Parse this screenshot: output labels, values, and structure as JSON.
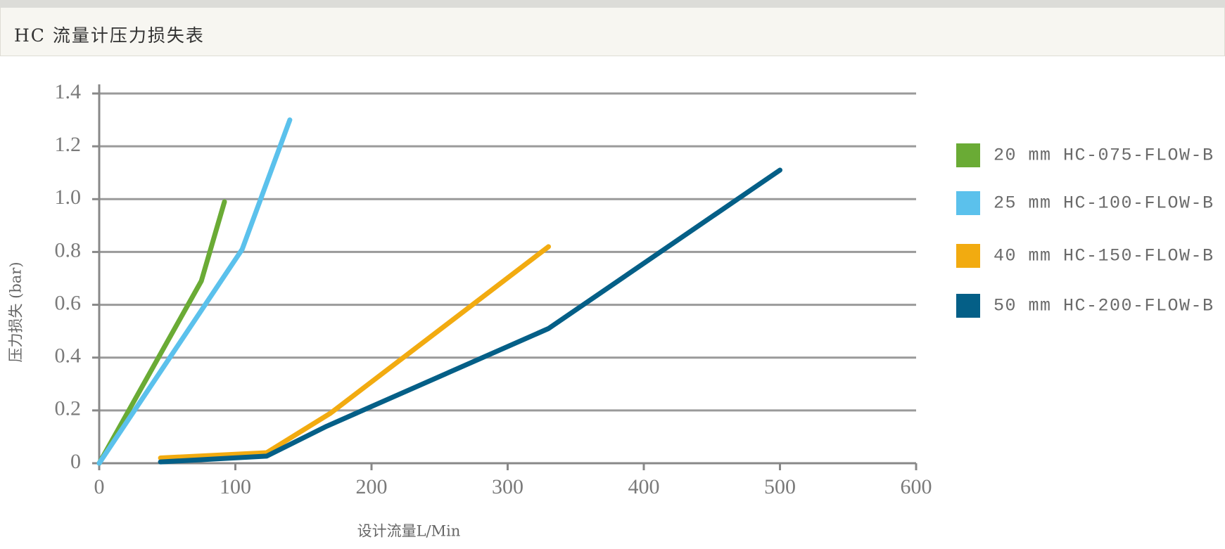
{
  "header": {
    "title": "HC 流量计压力损失表"
  },
  "chart_data": {
    "type": "line",
    "x_label": "设计流量L/Min",
    "y_label": "压力损失 (bar)",
    "xlim": [
      0,
      600
    ],
    "xticks": [
      0,
      100,
      200,
      300,
      400,
      500,
      600
    ],
    "ylim": [
      0,
      1.4
    ],
    "yticks": [
      0,
      0.2,
      0.4,
      0.6,
      0.8,
      {
        "value": 1,
        "label": "1.0"
      },
      1.2,
      1.4
    ],
    "grid": true,
    "series": [
      {
        "name": "20 mm HC-075-FLOW-B",
        "color": "#6aab35",
        "x": [
          0,
          75,
          92
        ],
        "values": [
          0,
          0.69,
          0.99
        ]
      },
      {
        "name": "25 mm HC-100-FLOW-B",
        "color": "#5bc1ec",
        "x": [
          0,
          105,
          140
        ],
        "values": [
          0,
          0.81,
          1.3
        ]
      },
      {
        "name": "40 mm HC-150-FLOW-B",
        "color": "#f2ab10",
        "x": [
          45,
          123,
          170,
          330
        ],
        "values": [
          0.02,
          0.04,
          0.19,
          0.82
        ]
      },
      {
        "name": "50 mm HC-200-FLOW-B",
        "color": "#045f87",
        "x": [
          45,
          123,
          167,
          330,
          500
        ],
        "values": [
          0.005,
          0.027,
          0.14,
          0.51,
          1.11
        ]
      }
    ]
  }
}
